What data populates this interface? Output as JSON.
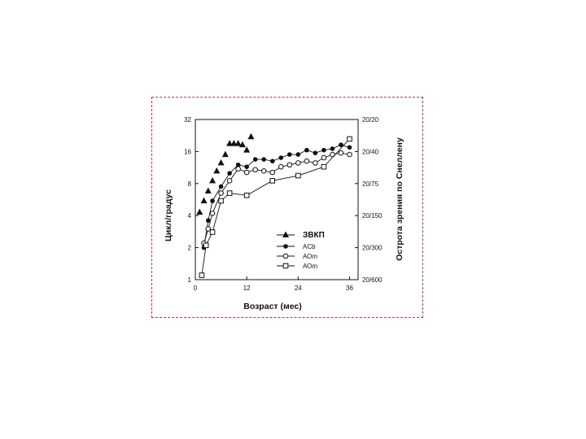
{
  "chart_data": {
    "type": "line",
    "xlabel": "Возраст (мес)",
    "ylabel": "Цикл/градус",
    "y2label": "Острота зрения по Снеллену",
    "x_ticks": [
      0,
      12,
      24,
      36
    ],
    "xlim": [
      0,
      38
    ],
    "y_scale": "log2",
    "y_ticks": [
      1,
      2,
      4,
      8,
      16,
      32
    ],
    "ylim": [
      1,
      32
    ],
    "y2_ticks": [
      "20/600",
      "20/300",
      "20/150",
      "20/75",
      "20/40",
      "20/20"
    ],
    "grid": false,
    "legend_position": "center-right",
    "legend_title": "ЗВКП",
    "series": [
      {
        "name": "ЗВКП",
        "marker": "filled-triangle",
        "points": [
          [
            1,
            4.3
          ],
          [
            2,
            5.5
          ],
          [
            3,
            6.8
          ],
          [
            4,
            8.5
          ],
          [
            5,
            10.5
          ],
          [
            6,
            12.5
          ],
          [
            7,
            15
          ],
          [
            8,
            19
          ],
          [
            9,
            19
          ],
          [
            10,
            19
          ],
          [
            11,
            18.5
          ],
          [
            12,
            16.5
          ],
          [
            13,
            22
          ]
        ]
      },
      {
        "name": "ACb",
        "marker": "filled-circle",
        "points": [
          [
            2,
            2
          ],
          [
            3,
            3.6
          ],
          [
            4,
            5.5
          ],
          [
            6,
            7.5
          ],
          [
            8,
            10
          ],
          [
            10,
            12
          ],
          [
            12,
            11.5
          ],
          [
            14,
            13.5
          ],
          [
            16,
            13.5
          ],
          [
            18,
            13
          ],
          [
            20,
            14
          ],
          [
            22,
            15
          ],
          [
            24,
            15
          ],
          [
            26,
            16.5
          ],
          [
            28,
            15.5
          ],
          [
            30,
            16.5
          ],
          [
            32,
            17
          ],
          [
            34,
            18.5
          ],
          [
            36,
            17.5
          ]
        ]
      },
      {
        "name": "АОm",
        "marker": "open-circle",
        "points": [
          [
            2,
            2.2
          ],
          [
            3,
            3
          ],
          [
            4,
            4.2
          ],
          [
            6,
            6.5
          ],
          [
            8,
            8.5
          ],
          [
            10,
            11
          ],
          [
            12,
            10.2
          ],
          [
            14,
            10.8
          ],
          [
            16,
            10.5
          ],
          [
            18,
            10.2
          ],
          [
            20,
            11.5
          ],
          [
            22,
            12
          ],
          [
            24,
            12.5
          ],
          [
            26,
            13
          ],
          [
            28,
            12.5
          ],
          [
            30,
            14
          ],
          [
            32,
            15
          ],
          [
            34,
            15.5
          ],
          [
            36,
            15
          ]
        ]
      },
      {
        "name": "АОm",
        "marker": "open-square",
        "points": [
          [
            1.5,
            1.1
          ],
          [
            2.5,
            2.1
          ],
          [
            4,
            2.8
          ],
          [
            6,
            5.5
          ],
          [
            8,
            6.5
          ],
          [
            12,
            6.2
          ],
          [
            18,
            8.5
          ],
          [
            24,
            9.5
          ],
          [
            30,
            11.5
          ],
          [
            36,
            21
          ]
        ]
      }
    ]
  }
}
